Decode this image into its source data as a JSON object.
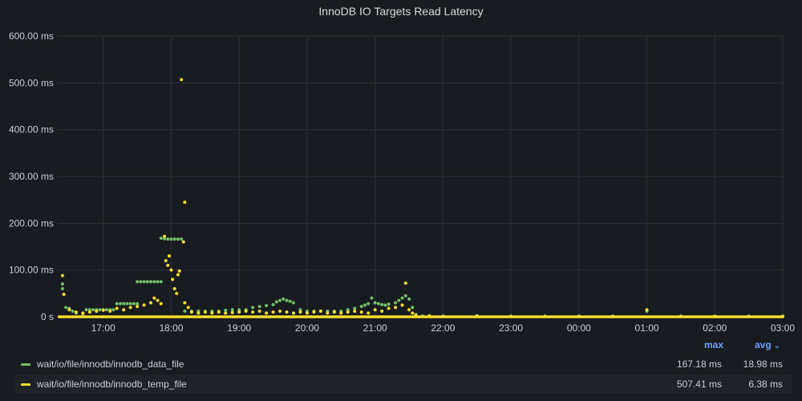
{
  "panel": {
    "title": "InnoDB IO Targets Read Latency"
  },
  "colors": {
    "background": "#181b1f",
    "grid": "#2c3035",
    "series_data_file": "#73bf69",
    "series_temp_file": "#fade2a"
  },
  "legend": {
    "col_max": "max",
    "col_avg": "avg",
    "sort_icon": "chevron-down-icon",
    "rows": [
      {
        "name": "wait/io/file/innodb/innodb_data_file",
        "max": "167.18 ms",
        "avg": "18.98 ms",
        "color": "#73bf69"
      },
      {
        "name": "wait/io/file/innodb/innodb_temp_file",
        "max": "507.41 ms",
        "avg": "6.38 ms",
        "color": "#fade2a"
      }
    ]
  },
  "chart_data": {
    "type": "scatter",
    "title": "InnoDB IO Targets Read Latency",
    "xlabel": "",
    "ylabel": "",
    "x_tick_labels": [
      "17:00",
      "18:00",
      "19:00",
      "20:00",
      "21:00",
      "22:00",
      "23:00",
      "00:00",
      "01:00",
      "02:00",
      "03:00"
    ],
    "y_tick_labels": [
      "0 s",
      "100.00 ms",
      "200.00 ms",
      "300.00 ms",
      "400.00 ms",
      "500.00 ms",
      "600.00 ms"
    ],
    "xlim_hours": [
      16.33,
      27.0
    ],
    "ylim_ms": [
      0,
      600
    ],
    "grid": true,
    "legend_placement": "bottom",
    "series": [
      {
        "name": "wait/io/file/innodb/innodb_data_file",
        "color": "#73bf69",
        "points": [
          [
            16.4,
            70
          ],
          [
            16.4,
            60
          ],
          [
            16.45,
            20
          ],
          [
            16.5,
            18
          ],
          [
            16.55,
            12
          ],
          [
            16.6,
            8
          ],
          [
            16.7,
            6
          ],
          [
            16.75,
            15
          ],
          [
            16.8,
            15
          ],
          [
            16.85,
            15
          ],
          [
            16.9,
            15
          ],
          [
            16.95,
            15
          ],
          [
            17.0,
            15
          ],
          [
            17.05,
            15
          ],
          [
            17.1,
            15
          ],
          [
            17.15,
            15
          ],
          [
            17.2,
            28
          ],
          [
            17.25,
            28
          ],
          [
            17.3,
            28
          ],
          [
            17.35,
            28
          ],
          [
            17.4,
            28
          ],
          [
            17.45,
            28
          ],
          [
            17.5,
            28
          ],
          [
            17.5,
            75
          ],
          [
            17.55,
            75
          ],
          [
            17.6,
            75
          ],
          [
            17.65,
            75
          ],
          [
            17.7,
            75
          ],
          [
            17.75,
            75
          ],
          [
            17.8,
            75
          ],
          [
            17.85,
            75
          ],
          [
            17.85,
            168
          ],
          [
            17.9,
            167
          ],
          [
            17.95,
            166
          ],
          [
            18.0,
            166
          ],
          [
            18.05,
            166
          ],
          [
            18.1,
            166
          ],
          [
            18.15,
            166
          ],
          [
            18.2,
            12
          ],
          [
            18.3,
            12
          ],
          [
            18.4,
            12
          ],
          [
            18.5,
            12
          ],
          [
            18.6,
            12
          ],
          [
            18.7,
            12
          ],
          [
            18.8,
            14
          ],
          [
            18.9,
            15
          ],
          [
            19.0,
            15
          ],
          [
            19.1,
            15
          ],
          [
            19.2,
            20
          ],
          [
            19.3,
            22
          ],
          [
            19.4,
            24
          ],
          [
            19.5,
            26
          ],
          [
            19.55,
            32
          ],
          [
            19.6,
            35
          ],
          [
            19.65,
            38
          ],
          [
            19.7,
            35
          ],
          [
            19.75,
            33
          ],
          [
            19.8,
            30
          ],
          [
            19.9,
            15
          ],
          [
            20.0,
            12
          ],
          [
            20.1,
            12
          ],
          [
            20.2,
            12
          ],
          [
            20.3,
            12
          ],
          [
            20.4,
            12
          ],
          [
            20.5,
            12
          ],
          [
            20.6,
            15
          ],
          [
            20.7,
            18
          ],
          [
            20.8,
            22
          ],
          [
            20.85,
            25
          ],
          [
            20.9,
            28
          ],
          [
            20.95,
            40
          ],
          [
            21.0,
            30
          ],
          [
            21.05,
            28
          ],
          [
            21.1,
            26
          ],
          [
            21.15,
            25
          ],
          [
            21.2,
            27
          ],
          [
            21.3,
            30
          ],
          [
            21.35,
            35
          ],
          [
            21.4,
            40
          ],
          [
            21.45,
            45
          ],
          [
            21.5,
            38
          ],
          [
            21.55,
            20
          ],
          [
            21.6,
            5
          ],
          [
            21.7,
            2
          ],
          [
            22.0,
            1
          ],
          [
            22.5,
            1
          ],
          [
            23.0,
            1
          ],
          [
            23.5,
            1
          ],
          [
            24.0,
            1
          ],
          [
            24.5,
            1
          ],
          [
            25.0,
            12
          ],
          [
            25.5,
            1
          ],
          [
            26.0,
            1
          ],
          [
            26.5,
            1
          ],
          [
            27.0,
            1
          ]
        ]
      },
      {
        "name": "wait/io/file/innodb/innodb_temp_file",
        "color": "#fade2a",
        "points": [
          [
            16.4,
            88
          ],
          [
            16.42,
            48
          ],
          [
            16.5,
            15
          ],
          [
            16.6,
            10
          ],
          [
            16.7,
            8
          ],
          [
            16.8,
            10
          ],
          [
            16.9,
            12
          ],
          [
            17.0,
            14
          ],
          [
            17.1,
            12
          ],
          [
            17.2,
            18
          ],
          [
            17.3,
            15
          ],
          [
            17.4,
            20
          ],
          [
            17.5,
            22
          ],
          [
            17.6,
            25
          ],
          [
            17.7,
            30
          ],
          [
            17.75,
            40
          ],
          [
            17.8,
            35
          ],
          [
            17.85,
            28
          ],
          [
            17.9,
            172
          ],
          [
            17.92,
            120
          ],
          [
            17.95,
            110
          ],
          [
            18.0,
            100
          ],
          [
            18.02,
            80
          ],
          [
            18.05,
            60
          ],
          [
            18.08,
            50
          ],
          [
            18.1,
            90
          ],
          [
            18.12,
            98
          ],
          [
            17.97,
            130
          ],
          [
            18.15,
            507
          ],
          [
            18.2,
            245
          ],
          [
            18.18,
            160
          ],
          [
            18.2,
            30
          ],
          [
            18.25,
            20
          ],
          [
            18.3,
            10
          ],
          [
            18.4,
            8
          ],
          [
            18.5,
            10
          ],
          [
            18.6,
            8
          ],
          [
            18.7,
            10
          ],
          [
            18.8,
            8
          ],
          [
            18.9,
            9
          ],
          [
            19.0,
            10
          ],
          [
            19.1,
            12
          ],
          [
            19.2,
            10
          ],
          [
            19.3,
            12
          ],
          [
            19.4,
            8
          ],
          [
            19.5,
            10
          ],
          [
            19.6,
            12
          ],
          [
            19.7,
            10
          ],
          [
            19.8,
            8
          ],
          [
            19.9,
            10
          ],
          [
            20.0,
            8
          ],
          [
            20.1,
            10
          ],
          [
            20.2,
            12
          ],
          [
            20.3,
            8
          ],
          [
            20.4,
            10
          ],
          [
            20.5,
            8
          ],
          [
            20.6,
            10
          ],
          [
            20.7,
            12
          ],
          [
            20.8,
            10
          ],
          [
            20.9,
            8
          ],
          [
            21.0,
            15
          ],
          [
            21.1,
            12
          ],
          [
            21.2,
            18
          ],
          [
            21.3,
            20
          ],
          [
            21.4,
            25
          ],
          [
            21.45,
            72
          ],
          [
            21.5,
            15
          ],
          [
            21.55,
            8
          ],
          [
            21.6,
            3
          ],
          [
            21.8,
            2
          ],
          [
            22.0,
            1
          ],
          [
            22.5,
            2
          ],
          [
            23.0,
            1
          ],
          [
            23.5,
            1
          ],
          [
            24.0,
            1
          ],
          [
            24.5,
            1
          ],
          [
            25.0,
            15
          ],
          [
            25.5,
            1
          ],
          [
            26.0,
            1
          ],
          [
            26.5,
            1
          ],
          [
            27.0,
            1
          ]
        ]
      }
    ]
  }
}
